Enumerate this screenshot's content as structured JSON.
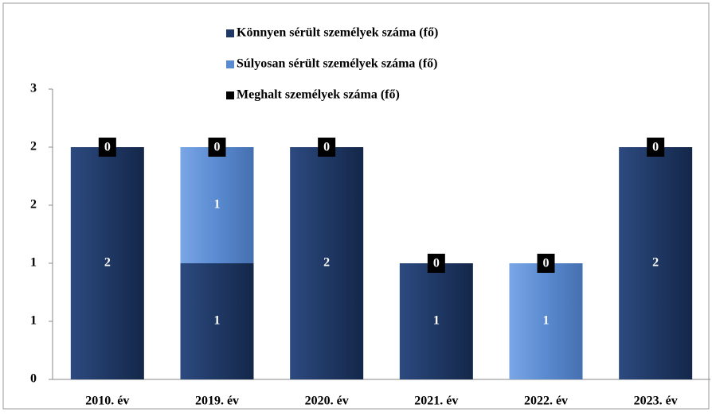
{
  "chart_data": {
    "type": "stacked_bar",
    "categories": [
      "2010. év",
      "2019. év",
      "2020. év",
      "2021. év",
      "2022. év",
      "2023. év"
    ],
    "series": [
      {
        "name": "Könnyen sérült személyek száma (fő)",
        "color": "#1f3864",
        "values": [
          2,
          1,
          2,
          1,
          0,
          2
        ]
      },
      {
        "name": "Súlyosan sérült személyek száma (fő)",
        "color": "#5a8ad0",
        "values": [
          0,
          1,
          0,
          0,
          1,
          0
        ]
      },
      {
        "name": "Meghalt személyek száma (fő)",
        "color": "#000000",
        "values": [
          0,
          0,
          0,
          0,
          0,
          0
        ]
      }
    ],
    "ylim": [
      0,
      2.5
    ],
    "yticks": [
      {
        "value": 0,
        "label": "0"
      },
      {
        "value": 0.5,
        "label": "1"
      },
      {
        "value": 1,
        "label": "1"
      },
      {
        "value": 1.5,
        "label": "2"
      },
      {
        "value": 2,
        "label": "2"
      },
      {
        "value": 2.5,
        "label": "3"
      }
    ],
    "legend": "top"
  }
}
